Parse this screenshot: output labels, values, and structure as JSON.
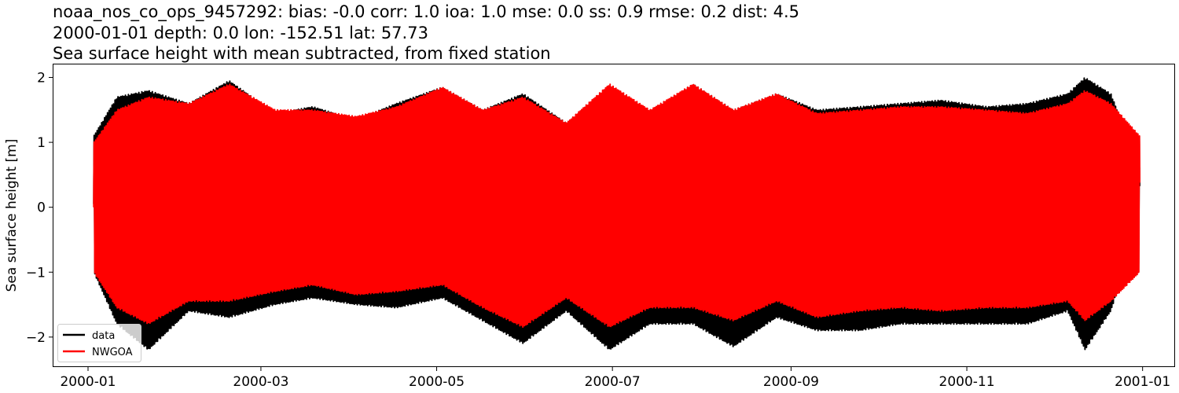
{
  "chart_data": {
    "type": "line",
    "title_lines": [
      "noaa_nos_co_ops_9457292: bias: -0.0  corr: 1.0  ioa: 1.0  mse: 0.0  ss: 0.9  rmse: 0.2  dist: 4.5",
      "2000-01-01 depth: 0.0 lon: -152.51 lat: 57.73",
      "Sea surface height with mean subtracted, from fixed station"
    ],
    "xlabel": "",
    "ylabel": "Sea surface height [m]",
    "xlim": [
      "1999-12-20",
      "2001-01-12"
    ],
    "ylim": [
      -2.45,
      2.2
    ],
    "x_ticks": [
      "2000-01",
      "2000-03",
      "2000-05",
      "2000-07",
      "2000-09",
      "2000-11",
      "2001-01"
    ],
    "y_ticks": [
      2,
      1,
      0,
      -1,
      -2
    ],
    "y_tick_labels": [
      "2",
      "1",
      "0",
      "−1",
      "−2"
    ],
    "grid": false,
    "legend_position": "lower-left",
    "series": [
      {
        "name": "data",
        "color": "#000000",
        "envelope_dates": [
          "2000-01-03",
          "2000-01-11",
          "2000-01-22",
          "2000-02-05",
          "2000-02-19",
          "2000-03-06",
          "2000-03-19",
          "2000-04-03",
          "2000-04-17",
          "2000-05-03",
          "2000-05-17",
          "2000-05-31",
          "2000-06-15",
          "2000-06-30",
          "2000-07-14",
          "2000-07-29",
          "2000-08-12",
          "2000-08-27",
          "2000-09-10",
          "2000-09-25",
          "2000-10-09",
          "2000-10-23",
          "2000-11-08",
          "2000-11-22",
          "2000-12-06",
          "2000-12-12",
          "2000-12-21",
          "2000-12-31"
        ],
        "envelope_high": [
          1.1,
          1.7,
          1.8,
          1.6,
          1.95,
          1.45,
          1.55,
          1.35,
          1.6,
          1.85,
          1.5,
          1.75,
          1.3,
          1.85,
          1.45,
          1.9,
          1.5,
          1.75,
          1.5,
          1.55,
          1.6,
          1.65,
          1.55,
          1.6,
          1.75,
          2.0,
          1.75,
          0.6
        ],
        "envelope_low": [
          -1.0,
          -1.8,
          -2.2,
          -1.6,
          -1.7,
          -1.5,
          -1.4,
          -1.5,
          -1.55,
          -1.4,
          -1.75,
          -2.1,
          -1.6,
          -2.2,
          -1.8,
          -1.8,
          -2.15,
          -1.7,
          -1.9,
          -1.9,
          -1.8,
          -1.8,
          -1.8,
          -1.8,
          -1.6,
          -2.2,
          -1.6,
          -0.2
        ]
      },
      {
        "name": "NWGOA",
        "color": "#ff0000",
        "envelope_dates": [
          "2000-01-03",
          "2000-01-11",
          "2000-01-22",
          "2000-02-05",
          "2000-02-19",
          "2000-03-06",
          "2000-03-19",
          "2000-04-03",
          "2000-04-17",
          "2000-05-03",
          "2000-05-17",
          "2000-05-31",
          "2000-06-15",
          "2000-06-30",
          "2000-07-14",
          "2000-07-29",
          "2000-08-12",
          "2000-08-27",
          "2000-09-10",
          "2000-09-25",
          "2000-10-09",
          "2000-10-23",
          "2000-11-08",
          "2000-11-22",
          "2000-12-06",
          "2000-12-12",
          "2000-12-21",
          "2000-12-31"
        ],
        "envelope_high": [
          1.0,
          1.5,
          1.7,
          1.6,
          1.9,
          1.5,
          1.5,
          1.4,
          1.55,
          1.85,
          1.5,
          1.7,
          1.3,
          1.9,
          1.5,
          1.9,
          1.5,
          1.75,
          1.45,
          1.5,
          1.55,
          1.55,
          1.5,
          1.45,
          1.6,
          1.8,
          1.6,
          1.1
        ],
        "envelope_low": [
          -1.0,
          -1.55,
          -1.8,
          -1.45,
          -1.45,
          -1.3,
          -1.2,
          -1.35,
          -1.3,
          -1.2,
          -1.55,
          -1.85,
          -1.4,
          -1.85,
          -1.55,
          -1.55,
          -1.75,
          -1.45,
          -1.7,
          -1.6,
          -1.55,
          -1.6,
          -1.55,
          -1.55,
          -1.45,
          -1.75,
          -1.45,
          -1.0
        ]
      }
    ]
  }
}
